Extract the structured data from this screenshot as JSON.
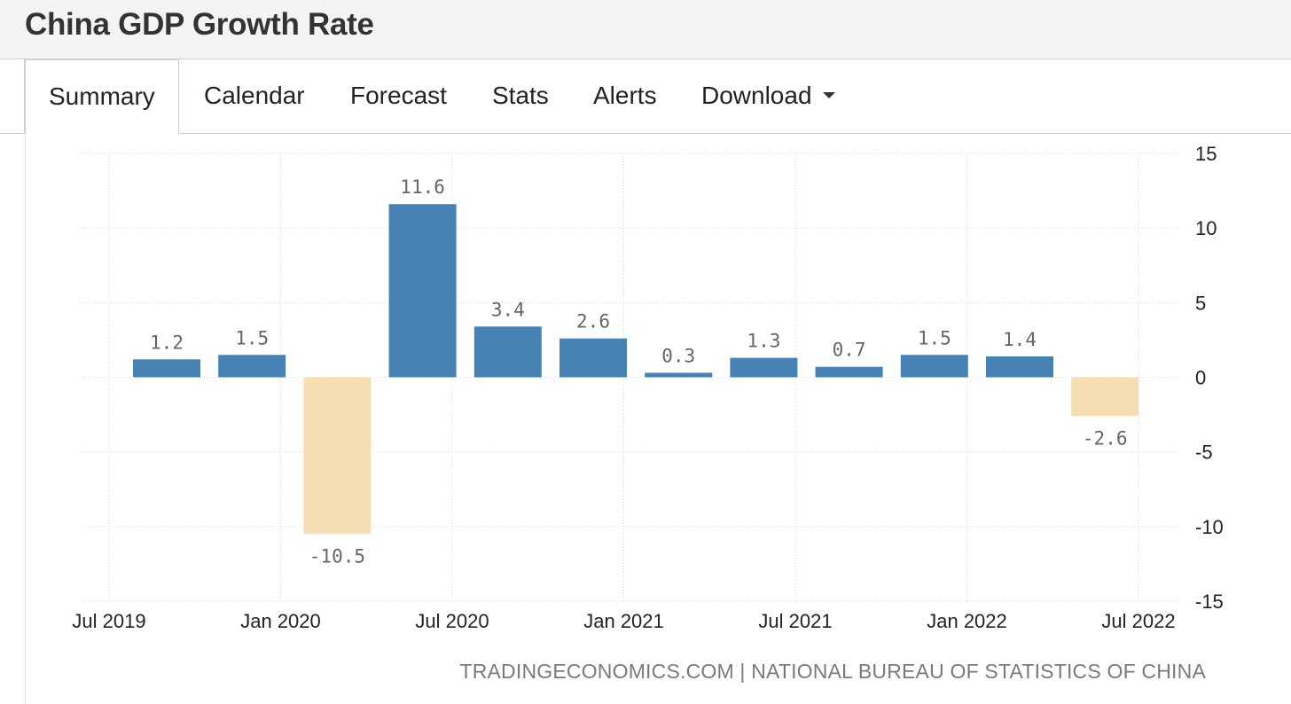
{
  "header": {
    "title": "China GDP Growth Rate"
  },
  "tabs": [
    {
      "label": "Summary",
      "active": true
    },
    {
      "label": "Calendar"
    },
    {
      "label": "Forecast"
    },
    {
      "label": "Stats"
    },
    {
      "label": "Alerts"
    },
    {
      "label": "Download",
      "dropdown": true
    }
  ],
  "chart_data": {
    "type": "bar",
    "title": "China GDP Growth Rate",
    "categories": [
      "Q3 2019",
      "Q4 2019",
      "Q1 2020",
      "Q2 2020",
      "Q3 2020",
      "Q4 2020",
      "Q1 2021",
      "Q2 2021",
      "Q3 2021",
      "Q4 2021",
      "Q1 2022",
      "Q2 2022"
    ],
    "values": [
      1.2,
      1.5,
      -10.5,
      11.6,
      3.4,
      2.6,
      0.3,
      1.3,
      0.7,
      1.5,
      1.4,
      -2.6
    ],
    "value_labels": [
      "1.2",
      "1.5",
      "-10.5",
      "11.6",
      "3.4",
      "2.6",
      "0.3",
      "1.3",
      "0.7",
      "1.5",
      "1.4",
      "-2.6"
    ],
    "x_tick_labels": [
      "Jul 2019",
      "Jan 2020",
      "Jul 2020",
      "Jan 2021",
      "Jul 2021",
      "Jan 2022",
      "Jul 2022"
    ],
    "y_ticks": [
      15,
      10,
      5,
      0,
      -5,
      -10,
      -15
    ],
    "y_tick_labels": [
      "15",
      "10",
      "5",
      "0",
      "-5",
      "-10",
      "-15"
    ],
    "ylim": [
      -15,
      15
    ],
    "yaxis_side": "right",
    "grid": true,
    "colors": {
      "positive": "#4682b4",
      "negative": "#f5deb3"
    },
    "xlabel": "",
    "ylabel": ""
  },
  "source": {
    "text": "TRADINGECONOMICS.COM | NATIONAL BUREAU OF STATISTICS OF CHINA"
  }
}
